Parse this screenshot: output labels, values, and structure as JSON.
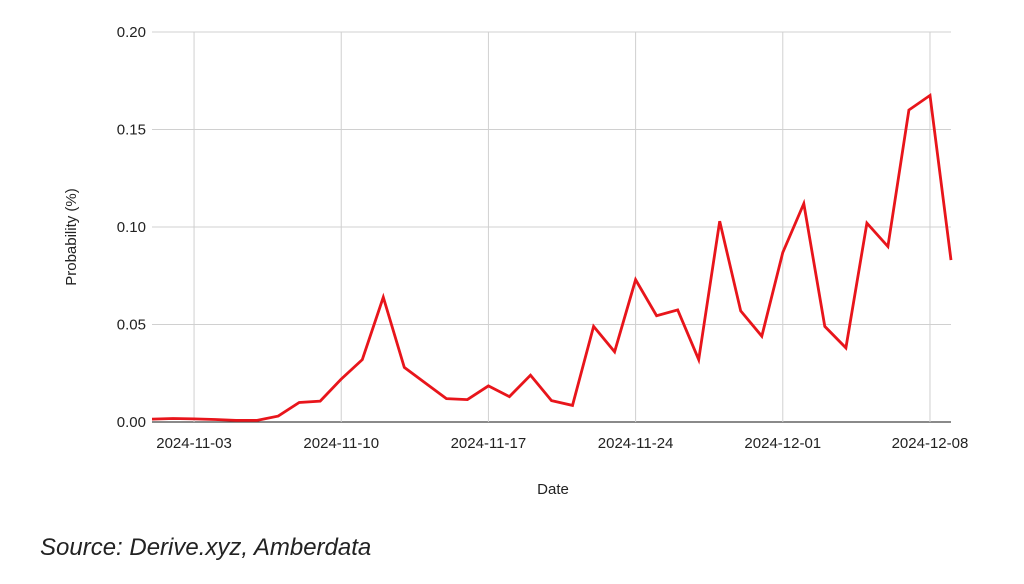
{
  "chart_data": {
    "type": "line",
    "xlabel": "Date",
    "ylabel": "Probability (%)",
    "x_ticks": [
      "2024-11-03",
      "2024-11-10",
      "2024-11-17",
      "2024-11-24",
      "2024-12-01",
      "2024-12-08"
    ],
    "y_ticks": [
      "0.00",
      "0.05",
      "0.10",
      "0.15",
      "0.20"
    ],
    "ylim": [
      0,
      0.2
    ],
    "xlim": [
      "2024-11-01",
      "2024-12-09"
    ],
    "grid": true,
    "series": [
      {
        "color": "#e8151b",
        "x": [
          "2024-11-01",
          "2024-11-02",
          "2024-11-03",
          "2024-11-04",
          "2024-11-05",
          "2024-11-06",
          "2024-11-07",
          "2024-11-08",
          "2024-11-09",
          "2024-11-10",
          "2024-11-11",
          "2024-11-12",
          "2024-11-13",
          "2024-11-14",
          "2024-11-15",
          "2024-11-16",
          "2024-11-17",
          "2024-11-18",
          "2024-11-19",
          "2024-11-20",
          "2024-11-21",
          "2024-11-22",
          "2024-11-23",
          "2024-11-24",
          "2024-11-25",
          "2024-11-26",
          "2024-11-27",
          "2024-11-28",
          "2024-11-29",
          "2024-11-30",
          "2024-12-01",
          "2024-12-02",
          "2024-12-03",
          "2024-12-04",
          "2024-12-05",
          "2024-12-06",
          "2024-12-07",
          "2024-12-08",
          "2024-12-09"
        ],
        "values": [
          0.0015,
          0.0018,
          0.0016,
          0.0013,
          0.0008,
          0.0008,
          0.003,
          0.01,
          0.0107,
          0.022,
          0.032,
          0.064,
          0.028,
          0.02,
          0.012,
          0.0115,
          0.0185,
          0.013,
          0.024,
          0.011,
          0.0085,
          0.049,
          0.036,
          0.073,
          0.0545,
          0.0575,
          0.032,
          0.103,
          0.057,
          0.044,
          0.087,
          0.112,
          0.049,
          0.038,
          0.102,
          0.09,
          0.16,
          0.1675,
          0.083
        ]
      }
    ]
  },
  "source_note": "Source: Derive.xyz, Amberdata"
}
